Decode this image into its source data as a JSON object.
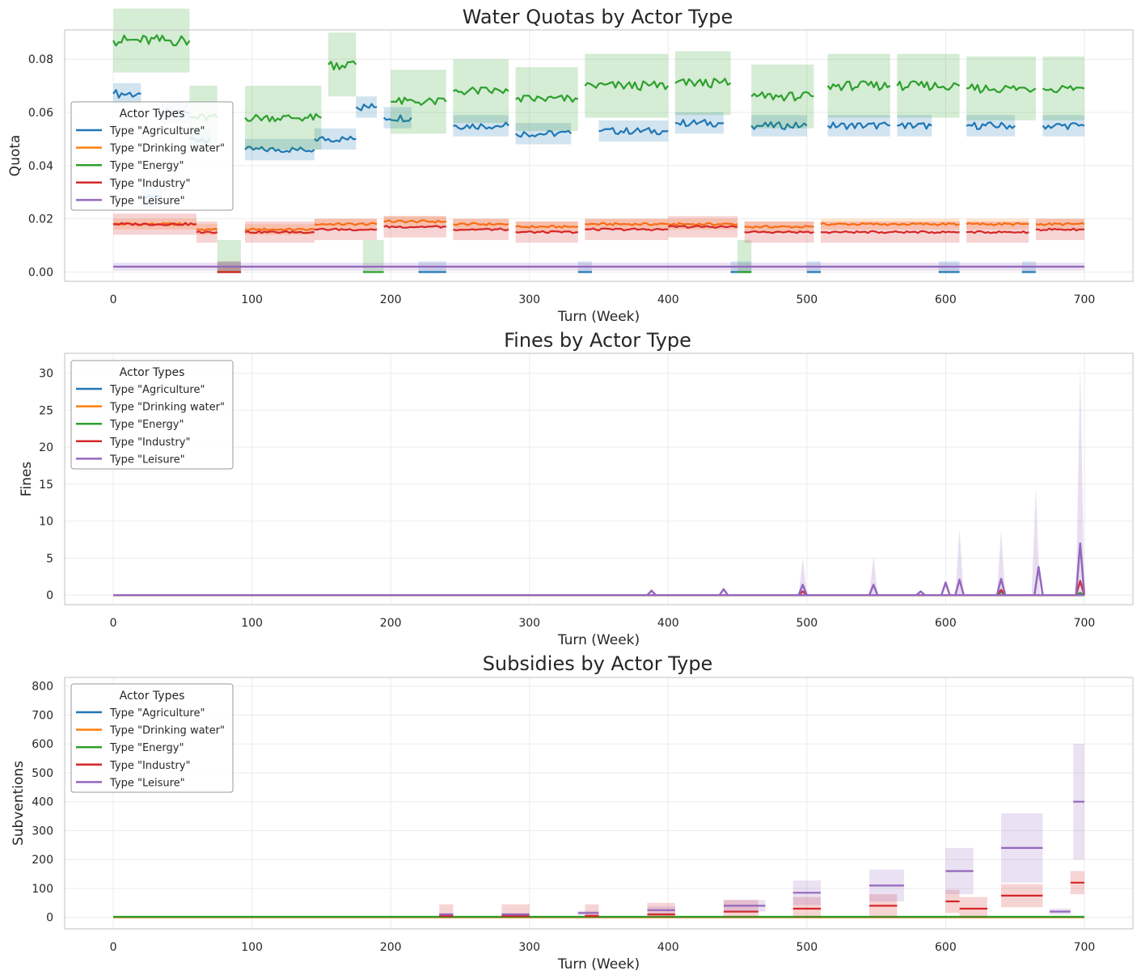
{
  "chart_data": [
    {
      "type": "line",
      "title": "Water Quotas by Actor Type",
      "xlabel": "Turn (Week)",
      "ylabel": "Quota",
      "xlim": [
        -35,
        735
      ],
      "ylim": [
        -0.0035,
        0.091
      ],
      "xticks": [
        0,
        100,
        200,
        300,
        400,
        500,
        600,
        700
      ],
      "yticks": [
        0.0,
        0.02,
        0.04,
        0.06,
        0.08
      ],
      "ytick_labels": [
        "0.00",
        "0.02",
        "0.04",
        "0.06",
        "0.08"
      ],
      "grid": true,
      "legend": {
        "title": "Actor Types",
        "placement": "center-left"
      },
      "series": [
        {
          "name": "Type \"Agriculture\"",
          "color": "#1f77b4",
          "band": 0.004,
          "segments": [
            [
              0,
              20,
              0.067
            ],
            [
              20,
              35,
              0.028
            ],
            [
              35,
              55,
              0.06
            ],
            [
              55,
              70,
              0.05
            ],
            [
              75,
              92,
              0.0
            ],
            [
              95,
              145,
              0.046
            ],
            [
              145,
              175,
              0.05
            ],
            [
              175,
              190,
              0.062
            ],
            [
              195,
              215,
              0.058
            ],
            [
              220,
              240,
              0.0
            ],
            [
              245,
              285,
              0.055
            ],
            [
              290,
              330,
              0.052
            ],
            [
              335,
              345,
              0.0
            ],
            [
              350,
              400,
              0.053
            ],
            [
              405,
              440,
              0.056
            ],
            [
              445,
              460,
              0.0
            ],
            [
              460,
              500,
              0.055
            ],
            [
              500,
              510,
              0.0
            ],
            [
              515,
              560,
              0.055
            ],
            [
              565,
              590,
              0.055
            ],
            [
              595,
              610,
              0.0
            ],
            [
              615,
              650,
              0.055
            ],
            [
              655,
              665,
              0.0
            ],
            [
              670,
              700,
              0.055
            ]
          ]
        },
        {
          "name": "Type \"Drinking water\"",
          "color": "#ff7f0e",
          "band": 0.002,
          "segments": [
            [
              0,
              60,
              0.018
            ],
            [
              60,
              75,
              0.016
            ],
            [
              75,
              92,
              0.0
            ],
            [
              95,
              145,
              0.016
            ],
            [
              145,
              190,
              0.018
            ],
            [
              195,
              240,
              0.019
            ],
            [
              245,
              285,
              0.018
            ],
            [
              290,
              335,
              0.017
            ],
            [
              340,
              400,
              0.018
            ],
            [
              400,
              450,
              0.018
            ],
            [
              455,
              505,
              0.017
            ],
            [
              510,
              560,
              0.018
            ],
            [
              560,
              610,
              0.018
            ],
            [
              615,
              660,
              0.018
            ],
            [
              665,
              700,
              0.018
            ]
          ]
        },
        {
          "name": "Type \"Energy\"",
          "color": "#2ca02c",
          "band": 0.012,
          "segments": [
            [
              0,
              55,
              0.087
            ],
            [
              55,
              75,
              0.058
            ],
            [
              75,
              92,
              0.0
            ],
            [
              95,
              150,
              0.058
            ],
            [
              155,
              175,
              0.078
            ],
            [
              180,
              195,
              0.0
            ],
            [
              200,
              240,
              0.064
            ],
            [
              245,
              285,
              0.068
            ],
            [
              290,
              335,
              0.065
            ],
            [
              340,
              400,
              0.07
            ],
            [
              405,
              445,
              0.071
            ],
            [
              450,
              460,
              0.0
            ],
            [
              460,
              505,
              0.066
            ],
            [
              515,
              560,
              0.07
            ],
            [
              565,
              610,
              0.07
            ],
            [
              615,
              665,
              0.069
            ],
            [
              670,
              700,
              0.069
            ]
          ]
        },
        {
          "name": "Type \"Industry\"",
          "color": "#d62728",
          "band": 0.004,
          "segments": [
            [
              0,
              60,
              0.018
            ],
            [
              60,
              75,
              0.015
            ],
            [
              75,
              92,
              0.0
            ],
            [
              95,
              145,
              0.015
            ],
            [
              145,
              190,
              0.016
            ],
            [
              195,
              240,
              0.017
            ],
            [
              245,
              285,
              0.016
            ],
            [
              290,
              335,
              0.015
            ],
            [
              340,
              400,
              0.016
            ],
            [
              400,
              450,
              0.017
            ],
            [
              455,
              505,
              0.015
            ],
            [
              510,
              560,
              0.015
            ],
            [
              560,
              610,
              0.015
            ],
            [
              615,
              660,
              0.015
            ],
            [
              665,
              700,
              0.016
            ]
          ]
        },
        {
          "name": "Type \"Leisure\"",
          "color": "#9467bd",
          "band": 0.0015,
          "segments": [
            [
              0,
              700,
              0.002
            ]
          ]
        }
      ]
    },
    {
      "type": "line",
      "title": "Fines by Actor Type",
      "xlabel": "Turn (Week)",
      "ylabel": "Fines",
      "xlim": [
        -35,
        735
      ],
      "ylim": [
        -1.3,
        32.7
      ],
      "xticks": [
        0,
        100,
        200,
        300,
        400,
        500,
        600,
        700
      ],
      "yticks": [
        0,
        5,
        10,
        15,
        20,
        25,
        30
      ],
      "ytick_labels": [
        "0",
        "5",
        "10",
        "15",
        "20",
        "25",
        "30"
      ],
      "grid": true,
      "legend": {
        "title": "Actor Types",
        "placement": "upper-left"
      },
      "series": [
        {
          "name": "Type \"Agriculture\"",
          "color": "#1f77b4",
          "spikes": []
        },
        {
          "name": "Type \"Drinking water\"",
          "color": "#ff7f0e",
          "spikes": []
        },
        {
          "name": "Type \"Energy\"",
          "color": "#2ca02c",
          "spikes": [
            [
              640,
              0.4
            ],
            [
              697,
              0.3
            ]
          ]
        },
        {
          "name": "Type \"Industry\"",
          "color": "#d62728",
          "spikes": [
            [
              497,
              0.5
            ],
            [
              640,
              0.7
            ],
            [
              697,
              1.9
            ]
          ]
        },
        {
          "name": "Type \"Leisure\"",
          "color": "#9467bd",
          "upper_spikes": [
            [
              497,
              5.0
            ],
            [
              548,
              5.3
            ],
            [
              610,
              9.0
            ],
            [
              640,
              8.8
            ],
            [
              665,
              14.5
            ],
            [
              697,
              31.2
            ]
          ],
          "spikes": [
            [
              388,
              0.6
            ],
            [
              440,
              0.8
            ],
            [
              497,
              1.4
            ],
            [
              548,
              1.4
            ],
            [
              582,
              0.5
            ],
            [
              600,
              1.7
            ],
            [
              610,
              2.1
            ],
            [
              640,
              2.2
            ],
            [
              667,
              3.8
            ],
            [
              697,
              7.0
            ]
          ]
        }
      ]
    },
    {
      "type": "line",
      "title": "Subsidies by Actor Type",
      "xlabel": "Turn (Week)",
      "ylabel": "Subventions",
      "xlim": [
        -35,
        735
      ],
      "ylim": [
        -40,
        830
      ],
      "xticks": [
        0,
        100,
        200,
        300,
        400,
        500,
        600,
        700
      ],
      "yticks": [
        0,
        100,
        200,
        300,
        400,
        500,
        600,
        700,
        800
      ],
      "ytick_labels": [
        "0",
        "100",
        "200",
        "300",
        "400",
        "500",
        "600",
        "700",
        "800"
      ],
      "grid": true,
      "legend": {
        "title": "Actor Types",
        "placement": "upper-left"
      },
      "series": [
        {
          "name": "Type \"Agriculture\"",
          "color": "#1f77b4",
          "segments": []
        },
        {
          "name": "Type \"Drinking water\"",
          "color": "#ff7f0e",
          "segments": []
        },
        {
          "name": "Type \"Energy\"",
          "color": "#2ca02c",
          "segments": [
            [
              0,
              700,
              2
            ]
          ]
        },
        {
          "name": "Type \"Industry\"",
          "color": "#d62728",
          "band": 40,
          "segments": [
            [
              235,
              245,
              5
            ],
            [
              280,
              300,
              5
            ],
            [
              340,
              350,
              5
            ],
            [
              385,
              405,
              10
            ],
            [
              440,
              465,
              20
            ],
            [
              490,
              510,
              30
            ],
            [
              545,
              565,
              40
            ],
            [
              600,
              610,
              55
            ],
            [
              610,
              630,
              30
            ],
            [
              640,
              670,
              75
            ],
            [
              690,
              700,
              120
            ]
          ]
        },
        {
          "name": "Type \"Leisure\"",
          "color": "#9467bd",
          "band_ratio": 0.5,
          "segments": [
            [
              235,
              245,
              10
            ],
            [
              280,
              300,
              10
            ],
            [
              335,
              350,
              15
            ],
            [
              385,
              405,
              25
            ],
            [
              440,
              470,
              40
            ],
            [
              490,
              510,
              85
            ],
            [
              545,
              570,
              110
            ],
            [
              600,
              620,
              160
            ],
            [
              640,
              670,
              240
            ],
            [
              675,
              690,
              20
            ],
            [
              692,
              700,
              400
            ]
          ]
        }
      ]
    }
  ]
}
